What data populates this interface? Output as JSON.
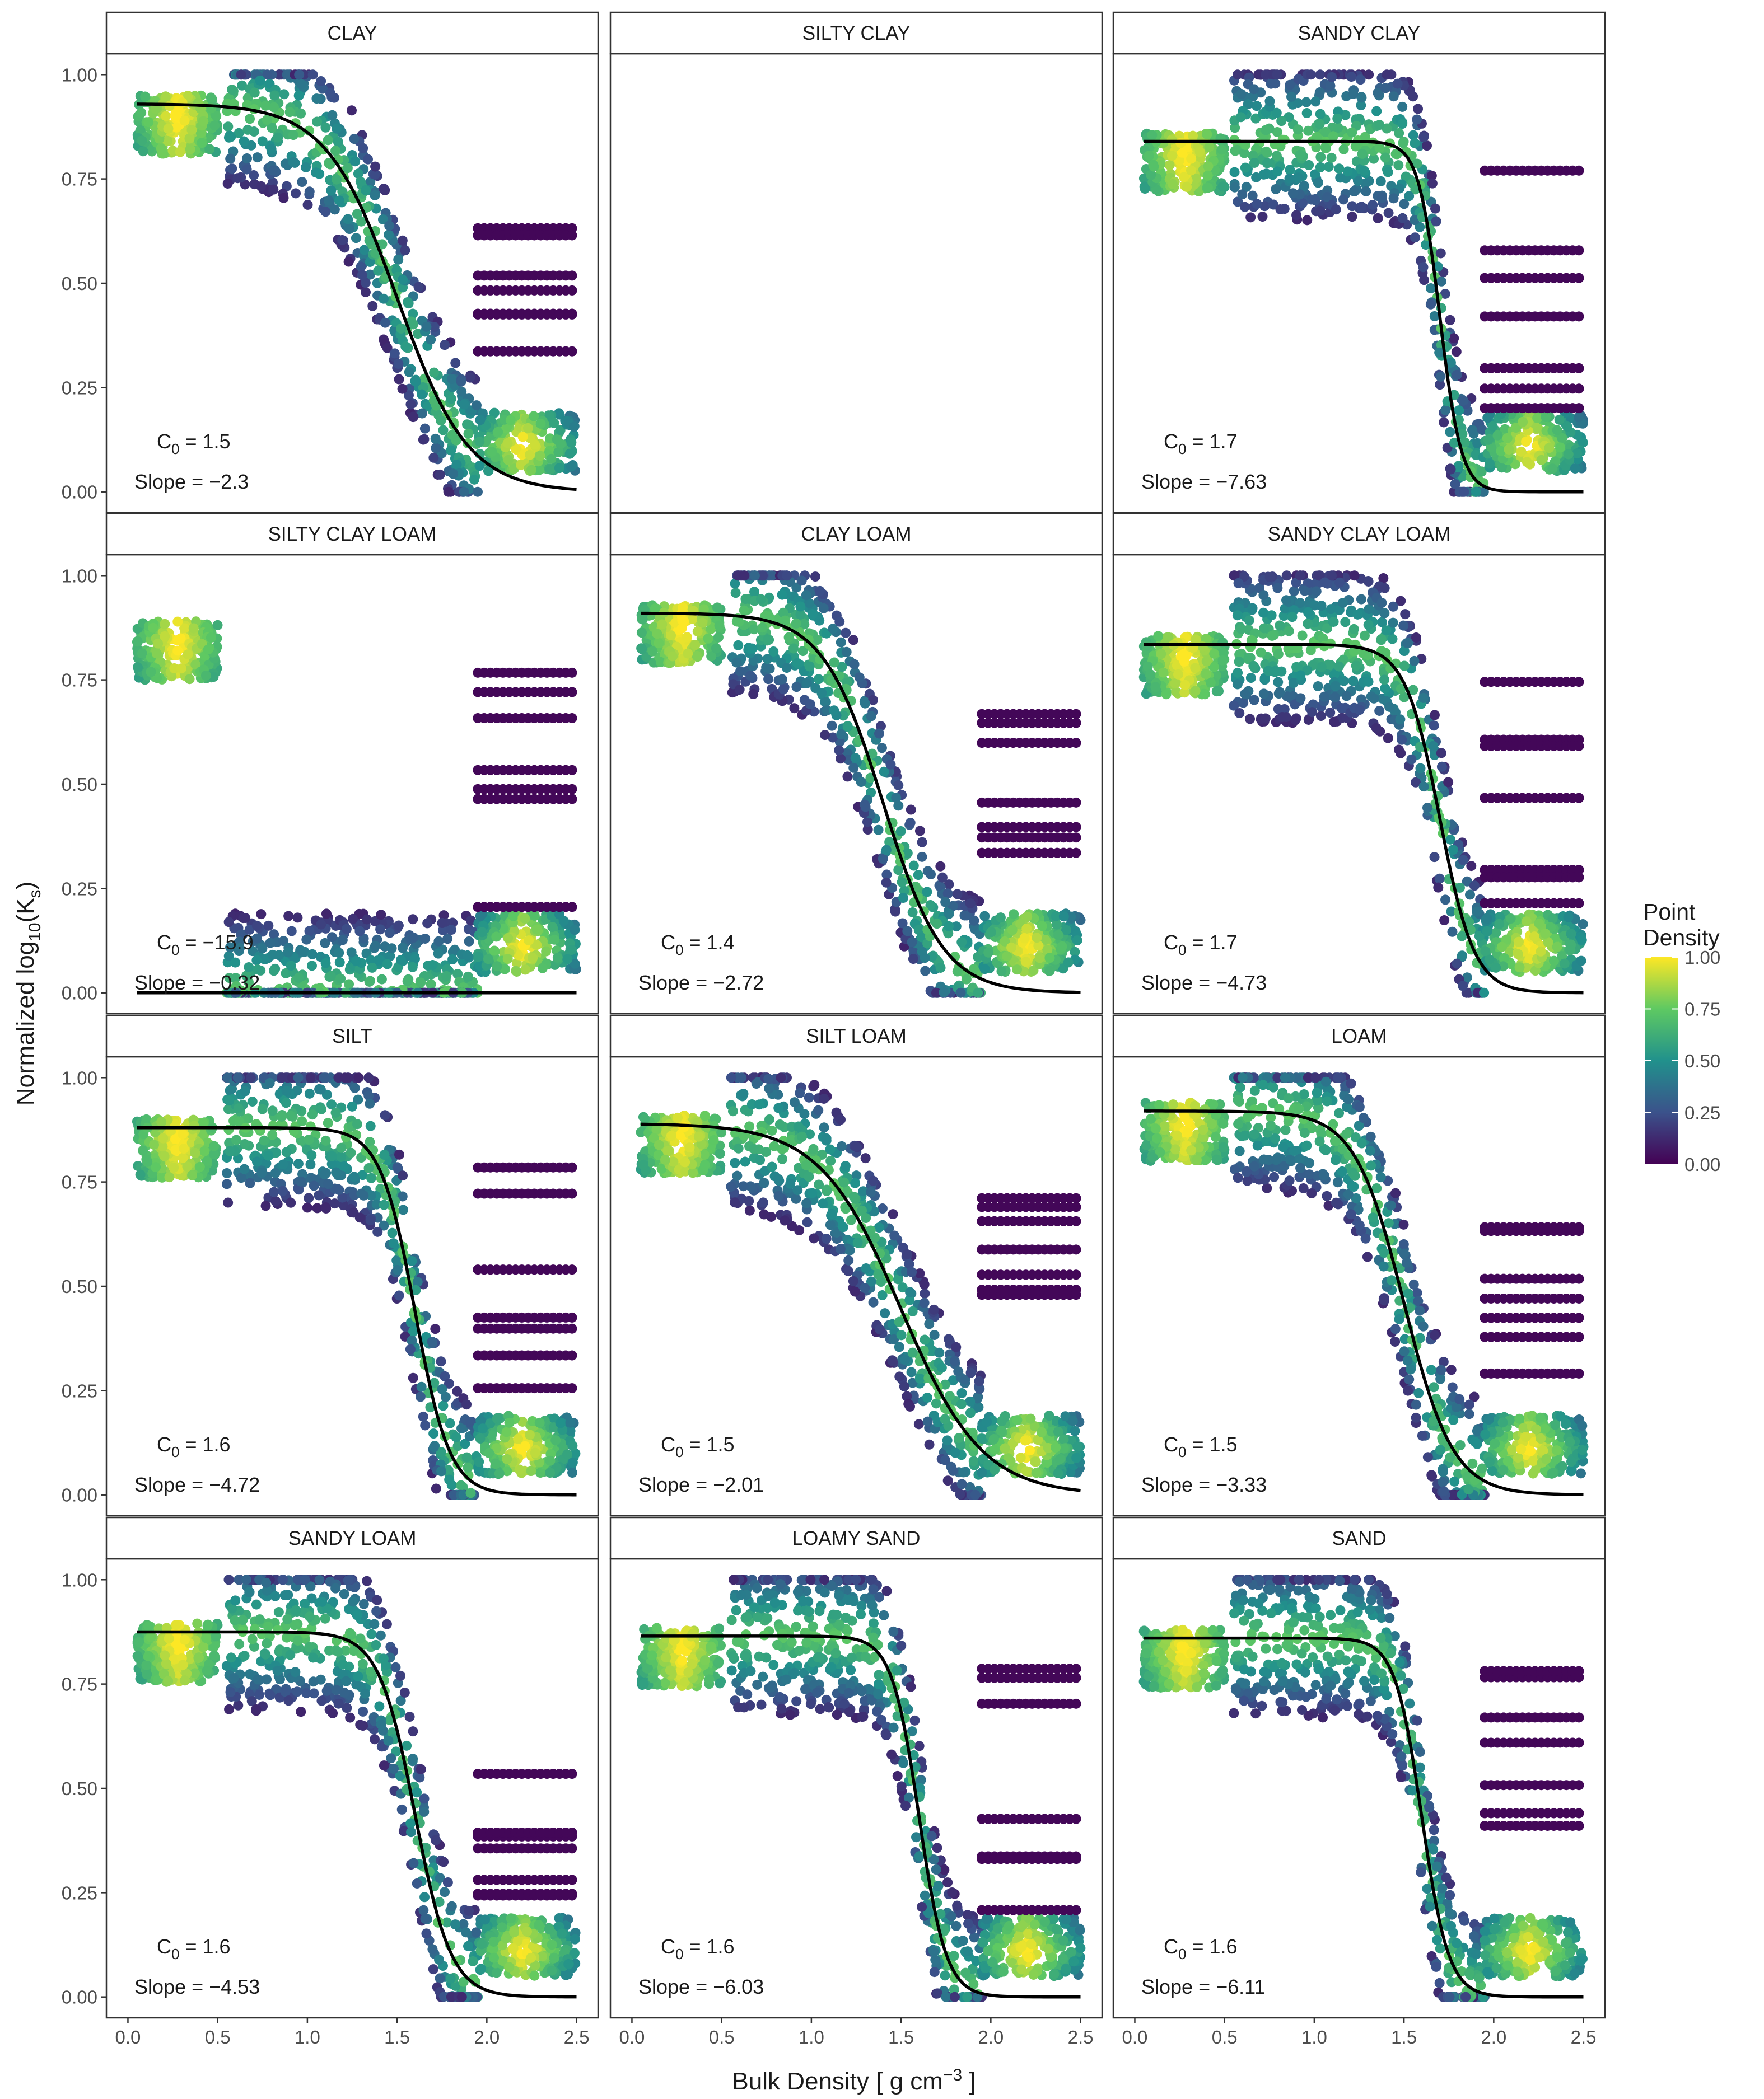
{
  "chart_data": {
    "type": "scatter",
    "xlabel": "Bulk Density [ g cm",
    "xlabel_exp": "−3",
    "xlabel_tail": " ]",
    "ylabel": "Normalized  log",
    "ylabel_sub1": "10",
    "ylabel_mid": "(K",
    "ylabel_sub2": "s",
    "ylabel_tail": ")",
    "xlim": [
      -0.12,
      2.62
    ],
    "ylim": [
      -0.05,
      1.05
    ],
    "x_ticks": [
      "0.0",
      "0.5",
      "1.0",
      "1.5",
      "2.0",
      "2.5"
    ],
    "x_tick_values": [
      0,
      0.5,
      1,
      1.5,
      2,
      2.5
    ],
    "y_ticks": [
      "0.00",
      "0.25",
      "0.50",
      "0.75",
      "1.00"
    ],
    "y_tick_values": [
      0,
      0.25,
      0.5,
      0.75,
      1
    ],
    "legend": {
      "title_line1": "Point",
      "title_line2": "Density",
      "labels": [
        "1.00",
        "0.75",
        "0.50",
        "0.25",
        "0.00"
      ],
      "values": [
        1,
        0.75,
        0.5,
        0.25,
        0
      ],
      "colors": [
        "#440154",
        "#3b528b",
        "#21918c",
        "#5ec962",
        "#fde725"
      ]
    },
    "fit_color": "#000000",
    "panels": [
      {
        "name": "CLAY",
        "c0_text": "1.5",
        "slope_text": "−2.3",
        "c0": 1.5,
        "slope": -2.3,
        "top": 0.93,
        "bottom": 0.0,
        "has_data": true
      },
      {
        "name": "SILTY CLAY",
        "c0_text": "",
        "slope_text": "",
        "has_data": false
      },
      {
        "name": "SANDY CLAY",
        "c0_text": "1.7",
        "slope_text": "−7.63",
        "c0": 1.7,
        "slope": -7.63,
        "top": 0.84,
        "bottom": 0.0,
        "has_data": true
      },
      {
        "name": "SILTY CLAY LOAM",
        "c0_text": "−15.9",
        "slope_text": "−0.32",
        "c0": -15.9,
        "slope": -0.32,
        "top": 0.87,
        "bottom": 0.0,
        "has_data": true
      },
      {
        "name": "CLAY LOAM",
        "c0_text": "1.4",
        "slope_text": "−2.72",
        "c0": 1.4,
        "slope": -2.72,
        "top": 0.91,
        "bottom": 0.0,
        "has_data": true
      },
      {
        "name": "SANDY CLAY LOAM",
        "c0_text": "1.7",
        "slope_text": "−4.73",
        "c0": 1.7,
        "slope": -4.73,
        "top": 0.835,
        "bottom": 0.0,
        "has_data": true
      },
      {
        "name": "SILT",
        "c0_text": "1.6",
        "slope_text": "−4.72",
        "c0": 1.6,
        "slope": -4.72,
        "top": 0.88,
        "bottom": 0.0,
        "has_data": true
      },
      {
        "name": "SILT LOAM",
        "c0_text": "1.5",
        "slope_text": "−2.01",
        "c0": 1.5,
        "slope": -2.01,
        "top": 0.89,
        "bottom": 0.0,
        "has_data": true
      },
      {
        "name": "LOAM",
        "c0_text": "1.5",
        "slope_text": "−3.33",
        "c0": 1.5,
        "slope": -3.33,
        "top": 0.92,
        "bottom": 0.0,
        "has_data": true
      },
      {
        "name": "SANDY LOAM",
        "c0_text": "1.6",
        "slope_text": "−4.53",
        "c0": 1.6,
        "slope": -4.53,
        "top": 0.875,
        "bottom": 0.0,
        "has_data": true
      },
      {
        "name": "LOAMY SAND",
        "c0_text": "1.6",
        "slope_text": "−6.03",
        "c0": 1.6,
        "slope": -6.03,
        "top": 0.865,
        "bottom": 0.0,
        "has_data": true
      },
      {
        "name": "SAND",
        "c0_text": "1.6",
        "slope_text": "−6.11",
        "c0": 1.6,
        "slope": -6.11,
        "top": 0.86,
        "bottom": 0.0,
        "has_data": true
      }
    ],
    "annotation_c0_label": "C",
    "annotation_c0_sub": "0",
    "annotation_eq": " = ",
    "annotation_slope_label": "Slope = "
  }
}
